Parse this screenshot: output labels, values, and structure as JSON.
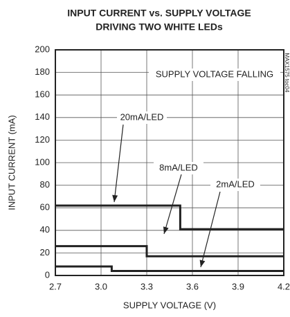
{
  "chart_data": {
    "type": "line",
    "title": "INPUT CURRENT vs. SUPPLY VOLTAGE",
    "subtitle": "DRIVING TWO WHITE LEDs",
    "x_label": "SUPPLY VOLTAGE (V)",
    "y_label": "INPUT CURRENT (mA)",
    "annotation": "SUPPLY VOLTAGE FALLING",
    "watermark": "MAX1575 toc04",
    "xlim": [
      2.7,
      4.2
    ],
    "xticks": [
      2.7,
      {
        "value": 3,
        "label": "3.0"
      },
      3.3,
      3.6,
      3.9,
      4.2
    ],
    "ylim": [
      0,
      200
    ],
    "yticks": [
      0,
      20,
      40,
      60,
      80,
      100,
      120,
      140,
      160,
      180,
      200
    ],
    "grid": true,
    "color": "#222222",
    "series": [
      {
        "name": "20mA/LED",
        "x": [
          2.7,
          3.52,
          3.52,
          4.2
        ],
        "values": [
          62,
          62,
          41,
          41
        ]
      },
      {
        "name": "8mA/LED",
        "x": [
          2.7,
          3.3,
          3.3,
          4.2
        ],
        "values": [
          26,
          26,
          17,
          17
        ]
      },
      {
        "name": "2mA/LED",
        "x": [
          2.7,
          3.07,
          3.07,
          4.2
        ],
        "values": [
          8,
          8,
          4,
          4
        ]
      }
    ]
  }
}
